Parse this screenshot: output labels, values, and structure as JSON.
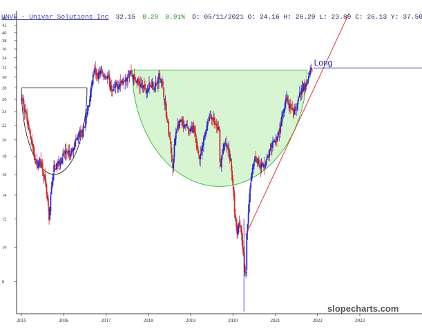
{
  "header": {
    "ticker_name": "UNVR - Univar Solutions Inc",
    "last": "32.15",
    "change": "0.29",
    "change_pct": "0.91%",
    "rest": "D: 05/11/2021 O: 24.16 H: 26.29 L: 23.89 C: 26.13 Y: 37.50"
  },
  "watermark": "slopecharts.com",
  "colors": {
    "candle_up": "#2a2ad0",
    "candle_down": "#d02a2a",
    "cup_fill": "#d6f5d0",
    "cup_stroke": "#44bb44",
    "trendline": "#e03030",
    "level_line": "#2a2a9a",
    "left_cup": "#333333"
  },
  "chart_data": {
    "type": "candlestick",
    "title": "UNVR - Univar Solutions Inc",
    "y_scale": "log",
    "ylim": [
      6.5,
      46
    ],
    "y_ticks": [
      "8",
      "10",
      "12",
      "14",
      "16",
      "18",
      "20",
      "22",
      "24",
      "26",
      "28",
      "30",
      "32",
      "34",
      "36",
      "38",
      "40",
      "42",
      "44"
    ],
    "x_ticks": [
      "2015",
      "2016",
      "2017",
      "2018",
      "2019",
      "2020",
      "2021",
      "2022",
      "2023"
    ],
    "x_tick_years": [
      2015,
      2016,
      2017,
      2018,
      2019,
      2020,
      2021,
      2022,
      2023
    ],
    "xlim": [
      2014.9,
      2024.3
    ],
    "price_path": [
      [
        2015.0,
        26.0
      ],
      [
        2015.08,
        24.5
      ],
      [
        2015.18,
        21.5
      ],
      [
        2015.28,
        18.5
      ],
      [
        2015.36,
        17.0
      ],
      [
        2015.45,
        17.6
      ],
      [
        2015.52,
        16.2
      ],
      [
        2015.58,
        14.5
      ],
      [
        2015.63,
        13.0
      ],
      [
        2015.66,
        11.5
      ],
      [
        2015.7,
        14.5
      ],
      [
        2015.76,
        16.5
      ],
      [
        2015.85,
        17.0
      ],
      [
        2015.95,
        17.8
      ],
      [
        2016.05,
        18.5
      ],
      [
        2016.15,
        18.0
      ],
      [
        2016.25,
        19.5
      ],
      [
        2016.35,
        20.5
      ],
      [
        2016.45,
        21.0
      ],
      [
        2016.55,
        23.5
      ],
      [
        2016.62,
        26.5
      ],
      [
        2016.68,
        29.5
      ],
      [
        2016.72,
        31.5
      ],
      [
        2016.78,
        30.0
      ],
      [
        2016.85,
        31.0
      ],
      [
        2016.95,
        30.5
      ],
      [
        2017.05,
        30.0
      ],
      [
        2017.1,
        28.0
      ],
      [
        2017.18,
        27.5
      ],
      [
        2017.25,
        28.5
      ],
      [
        2017.35,
        29.0
      ],
      [
        2017.45,
        30.0
      ],
      [
        2017.52,
        30.5
      ],
      [
        2017.58,
        31.0
      ],
      [
        2017.62,
        30.5
      ],
      [
        2017.68,
        29.5
      ],
      [
        2017.75,
        29.0
      ],
      [
        2017.82,
        28.5
      ],
      [
        2017.9,
        28.0
      ],
      [
        2017.95,
        27.5
      ],
      [
        2018.0,
        28.0
      ],
      [
        2018.05,
        28.5
      ],
      [
        2018.1,
        29.0
      ],
      [
        2018.15,
        28.0
      ],
      [
        2018.2,
        28.8
      ],
      [
        2018.26,
        30.5
      ],
      [
        2018.32,
        29.0
      ],
      [
        2018.38,
        26.0
      ],
      [
        2018.43,
        23.5
      ],
      [
        2018.48,
        21.0
      ],
      [
        2018.52,
        19.5
      ],
      [
        2018.55,
        17.5
      ],
      [
        2018.58,
        16.5
      ],
      [
        2018.62,
        19.5
      ],
      [
        2018.66,
        21.5
      ],
      [
        2018.72,
        22.0
      ],
      [
        2018.78,
        22.5
      ],
      [
        2018.85,
        21.5
      ],
      [
        2018.92,
        22.0
      ],
      [
        2018.98,
        21.0
      ],
      [
        2019.05,
        21.8
      ],
      [
        2019.12,
        20.0
      ],
      [
        2019.18,
        18.5
      ],
      [
        2019.22,
        17.5
      ],
      [
        2019.28,
        19.0
      ],
      [
        2019.34,
        21.0
      ],
      [
        2019.4,
        22.5
      ],
      [
        2019.46,
        23.5
      ],
      [
        2019.52,
        23.0
      ],
      [
        2019.58,
        22.0
      ],
      [
        2019.64,
        21.5
      ],
      [
        2019.68,
        21.0
      ],
      [
        2019.7,
        16.0
      ],
      [
        2019.73,
        18.0
      ],
      [
        2019.78,
        19.0
      ],
      [
        2019.82,
        19.5
      ],
      [
        2019.86,
        19.0
      ],
      [
        2019.9,
        18.5
      ],
      [
        2019.94,
        17.5
      ],
      [
        2019.98,
        15.5
      ],
      [
        2020.02,
        14.0
      ],
      [
        2020.05,
        12.0
      ],
      [
        2020.08,
        11.5
      ],
      [
        2020.11,
        11.0
      ],
      [
        2020.14,
        12.0
      ],
      [
        2020.18,
        11.5
      ],
      [
        2020.22,
        10.5
      ],
      [
        2020.25,
        9.5
      ],
      [
        2020.28,
        8.5
      ],
      [
        2020.3,
        8.0
      ],
      [
        2020.33,
        11.0
      ],
      [
        2020.37,
        13.0
      ],
      [
        2020.42,
        15.5
      ],
      [
        2020.47,
        17.0
      ],
      [
        2020.52,
        18.0
      ],
      [
        2020.58,
        17.5
      ],
      [
        2020.65,
        17.0
      ],
      [
        2020.72,
        16.8
      ],
      [
        2020.78,
        17.5
      ],
      [
        2020.84,
        18.0
      ],
      [
        2020.9,
        19.0
      ],
      [
        2020.96,
        19.5
      ],
      [
        2021.02,
        20.0
      ],
      [
        2021.08,
        21.0
      ],
      [
        2021.14,
        22.5
      ],
      [
        2021.2,
        24.0
      ],
      [
        2021.26,
        26.0
      ],
      [
        2021.32,
        25.0
      ],
      [
        2021.38,
        24.0
      ],
      [
        2021.44,
        23.5
      ],
      [
        2021.5,
        25.0
      ],
      [
        2021.56,
        26.0
      ],
      [
        2021.62,
        27.5
      ],
      [
        2021.68,
        28.5
      ],
      [
        2021.72,
        28.0
      ],
      [
        2021.76,
        29.0
      ],
      [
        2021.8,
        30.0
      ],
      [
        2021.84,
        31.0
      ],
      [
        2021.88,
        32.15
      ]
    ],
    "annotations": {
      "long_label": "Long",
      "long_level": 31.8,
      "long_level_from_year": 2021.9,
      "rim_level": 31.4,
      "rim_from_year": 2017.62,
      "rim_to_year": 2021.75,
      "cup_bottom": 14.8,
      "left_rim_level": 28.0,
      "left_rim_from_year": 2015.0,
      "left_rim_to_year": 2016.55,
      "left_cup_bottom": 16.0,
      "trend_from": [
        2020.3,
        10.8
      ],
      "trend_to": [
        2022.75,
        45.5
      ]
    }
  }
}
